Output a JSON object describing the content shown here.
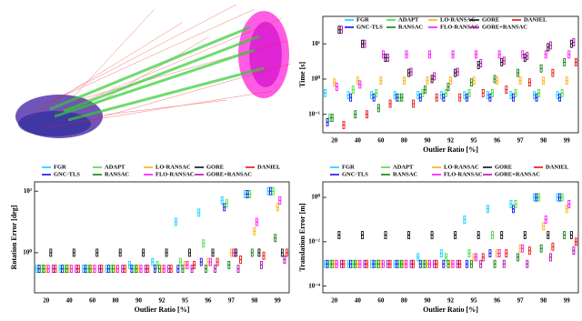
{
  "chart_data": [
    {
      "type": "box",
      "xlabel": "Outlier Ratio [%]",
      "ylabel": "Time [s]",
      "log_y": true,
      "grid": false,
      "legend": "top",
      "categories": [
        "20",
        "40",
        "60",
        "80",
        "90",
        "92",
        "95",
        "96",
        "97",
        "98",
        "99"
      ],
      "ylim": [
        0.03,
        60
      ],
      "yticks": [
        {
          "value": 0.1,
          "label": "10⁻¹"
        },
        {
          "value": 1,
          "label": "10⁰"
        },
        {
          "value": 10,
          "label": "10¹"
        }
      ],
      "series": [
        {
          "name": "FGR",
          "color": "#00ccff",
          "values": [
            0.4,
            0.35,
            0.35,
            0.35,
            0.35,
            0.35,
            0.35,
            0.35,
            0.35,
            0.35,
            0.35
          ]
        },
        {
          "name": "GNC-TLS",
          "color": "#0000ee",
          "values": [
            0.06,
            0.3,
            0.3,
            0.3,
            0.3,
            0.3,
            0.3,
            0.3,
            0.3,
            0.3,
            0.3
          ]
        },
        {
          "name": "ADAPT",
          "color": "#33dd33",
          "values": [
            0.08,
            0.5,
            0.4,
            0.3,
            0.4,
            0.4,
            0.4,
            0.4,
            0.4,
            0.4,
            0.4
          ]
        },
        {
          "name": "RANSAC",
          "color": "#007700",
          "values": [
            0.08,
            0.1,
            0.15,
            0.3,
            0.5,
            0.6,
            0.8,
            1,
            1.5,
            2,
            3
          ]
        },
        {
          "name": "LO-RANSAC",
          "color": "#ffaa00",
          "values": [
            0.8,
            0.9,
            0.9,
            0.9,
            0.9,
            0.9,
            0.9,
            0.9,
            0.9,
            0.9,
            0.9
          ]
        },
        {
          "name": "FLO-RANSAC",
          "color": "#ff00ff",
          "values": [
            0.6,
            0.7,
            5,
            5,
            5,
            5,
            5,
            5,
            5,
            5,
            5
          ]
        },
        {
          "name": "GORE",
          "color": "#000000",
          "values": [
            25,
            10,
            4,
            1.5,
            1,
            1.5,
            2.5,
            3,
            4,
            8,
            10
          ]
        },
        {
          "name": "GORE+RANSAC",
          "color": "#aa00aa",
          "values": [
            25,
            10,
            4,
            1.6,
            1.2,
            1.6,
            2.8,
            3.3,
            4.5,
            9,
            11
          ]
        },
        {
          "name": "DANIEL",
          "color": "#ee0000",
          "values": [
            0.05,
            0.1,
            0.2,
            0.2,
            0.3,
            0.3,
            0.4,
            0.5,
            0.8,
            1.5,
            3
          ]
        }
      ]
    },
    {
      "type": "box",
      "xlabel": "Outlier Ratio [%]",
      "ylabel": "Rotation Error [deg]",
      "log_y": true,
      "grid": false,
      "legend": "above",
      "categories": [
        "20",
        "40",
        "60",
        "80",
        "90",
        "92",
        "95",
        "96",
        "97",
        "98",
        "99"
      ],
      "ylim": [
        0.05,
        200
      ],
      "yticks": [
        {
          "value": 1,
          "label": "10⁰"
        },
        {
          "value": 100,
          "label": "10²"
        }
      ],
      "series": [
        {
          "name": "FGR",
          "color": "#00ccff",
          "values": [
            0.3,
            0.3,
            0.3,
            0.3,
            0.4,
            0.5,
            10,
            20,
            50,
            80,
            100
          ]
        },
        {
          "name": "GNC-TLS",
          "color": "#0000ee",
          "values": [
            0.3,
            0.3,
            0.3,
            0.3,
            0.3,
            0.3,
            0.3,
            0.5,
            30,
            80,
            100
          ]
        },
        {
          "name": "ADAPT",
          "color": "#33dd33",
          "values": [
            0.3,
            0.3,
            0.3,
            0.3,
            0.3,
            0.4,
            0.5,
            2,
            40,
            80,
            100
          ]
        },
        {
          "name": "RANSAC",
          "color": "#007700",
          "values": [
            0.3,
            0.3,
            0.3,
            0.3,
            0.3,
            0.3,
            0.3,
            0.3,
            0.4,
            1,
            3
          ]
        },
        {
          "name": "LO-RANSAC",
          "color": "#ffaa00",
          "values": [
            0.3,
            0.3,
            0.3,
            0.3,
            0.3,
            0.3,
            0.4,
            0.5,
            1,
            5,
            30
          ]
        },
        {
          "name": "FLO-RANSAC",
          "color": "#ff00ff",
          "values": [
            0.3,
            0.3,
            0.3,
            0.3,
            0.3,
            0.3,
            0.4,
            0.5,
            1,
            10,
            50
          ]
        },
        {
          "name": "GORE",
          "color": "#000000",
          "values": [
            1,
            1,
            1,
            1,
            1,
            1,
            1,
            1,
            1,
            1,
            1
          ]
        },
        {
          "name": "GORE+RANSAC",
          "color": "#aa00aa",
          "values": [
            0.3,
            0.3,
            0.3,
            0.3,
            0.3,
            0.3,
            0.3,
            0.3,
            0.3,
            0.4,
            0.6
          ]
        },
        {
          "name": "DANIEL",
          "color": "#ee0000",
          "values": [
            0.3,
            0.3,
            0.3,
            0.3,
            0.3,
            0.3,
            0.4,
            0.5,
            0.6,
            0.8,
            1
          ]
        }
      ]
    },
    {
      "type": "box",
      "xlabel": "Outlier Ratio [%]",
      "ylabel": "Translation Error [m]",
      "log_y": true,
      "grid": false,
      "legend": "above",
      "categories": [
        "20",
        "40",
        "60",
        "80",
        "90",
        "92",
        "95",
        "96",
        "97",
        "98",
        "99"
      ],
      "ylim": [
        5e-05,
        5
      ],
      "yticks": [
        {
          "value": 0.0001,
          "label": "10⁻⁴"
        },
        {
          "value": 0.01,
          "label": "10⁻²"
        },
        {
          "value": 1,
          "label": "10⁰"
        }
      ],
      "series": [
        {
          "name": "FGR",
          "color": "#00ccff",
          "values": [
            0.001,
            0.001,
            0.001,
            0.001,
            0.002,
            0.003,
            0.1,
            0.3,
            0.5,
            1,
            1
          ]
        },
        {
          "name": "GNC-TLS",
          "color": "#0000ee",
          "values": [
            0.001,
            0.001,
            0.001,
            0.001,
            0.001,
            0.001,
            0.001,
            0.003,
            0.3,
            1,
            1
          ]
        },
        {
          "name": "ADAPT",
          "color": "#33dd33",
          "values": [
            0.001,
            0.001,
            0.001,
            0.001,
            0.001,
            0.002,
            0.003,
            0.02,
            0.5,
            1,
            1
          ]
        },
        {
          "name": "RANSAC",
          "color": "#007700",
          "values": [
            0.001,
            0.001,
            0.001,
            0.001,
            0.001,
            0.001,
            0.001,
            0.001,
            0.002,
            0.005,
            0.02
          ]
        },
        {
          "name": "LO-RANSAC",
          "color": "#ffaa00",
          "values": [
            0.001,
            0.001,
            0.001,
            0.001,
            0.001,
            0.001,
            0.002,
            0.003,
            0.005,
            0.05,
            0.3
          ]
        },
        {
          "name": "FLO-RANSAC",
          "color": "#ff00ff",
          "values": [
            0.001,
            0.001,
            0.001,
            0.001,
            0.001,
            0.001,
            0.002,
            0.003,
            0.005,
            0.1,
            0.5
          ]
        },
        {
          "name": "GORE",
          "color": "#000000",
          "values": [
            0.02,
            0.02,
            0.02,
            0.02,
            0.02,
            0.02,
            0.02,
            0.02,
            0.02,
            0.02,
            0.02
          ]
        },
        {
          "name": "GORE+RANSAC",
          "color": "#aa00aa",
          "values": [
            0.001,
            0.001,
            0.001,
            0.001,
            0.001,
            0.001,
            0.001,
            0.001,
            0.001,
            0.002,
            0.004
          ]
        },
        {
          "name": "DANIEL",
          "color": "#ee0000",
          "values": [
            0.001,
            0.001,
            0.001,
            0.001,
            0.001,
            0.001,
            0.002,
            0.003,
            0.004,
            0.006,
            0.01
          ]
        }
      ]
    }
  ]
}
